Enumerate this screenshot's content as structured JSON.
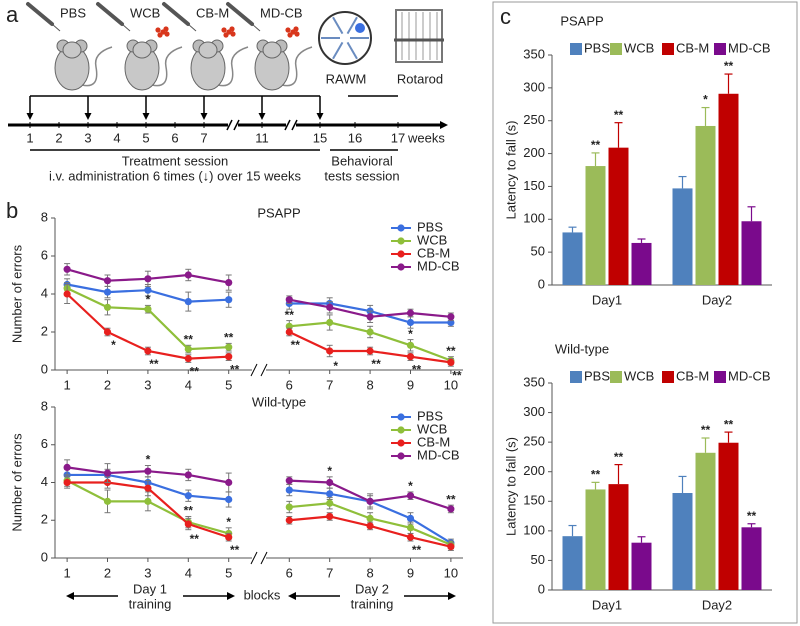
{
  "panel_labels": [
    "a",
    "b",
    "c"
  ],
  "panel_a": {
    "treatments": [
      "PBS",
      "WCB",
      "CB-M",
      "MD-CB"
    ],
    "tests": [
      "RAWM",
      "Rotarod"
    ],
    "timeline_weeks": [
      1,
      2,
      3,
      4,
      5,
      6,
      7,
      11,
      15,
      16,
      17
    ],
    "timeline_unit": "weeks",
    "injection_weeks": [
      1,
      3,
      5,
      7,
      11,
      15
    ],
    "treatment_session": [
      "Treatment session",
      "i.v. administration 6 times (↓) over 15 weeks"
    ],
    "behavioral_session": [
      "Behavioral",
      "tests session"
    ]
  },
  "panel_b_footer": {
    "day1": [
      "Day 1",
      "training"
    ],
    "blocks": "blocks",
    "day2": [
      "Day 2",
      "training"
    ]
  },
  "chart_data": [
    {
      "type": "line",
      "title": "PSAPP",
      "y_label": "Number of errors",
      "x": [
        1,
        2,
        3,
        4,
        5,
        6,
        7,
        8,
        9,
        10
      ],
      "xlim": [
        0.7,
        10.3
      ],
      "xticks": [
        1,
        2,
        3,
        4,
        5,
        6,
        7,
        8,
        9,
        10
      ],
      "axis_break_after": 5,
      "ylim": [
        0,
        8
      ],
      "yticks": [
        0,
        2,
        4,
        6,
        8
      ],
      "legend": "upper right",
      "series": [
        {
          "name": "PBS",
          "color": "#3a6fe0",
          "values": [
            4.5,
            4.1,
            4.2,
            3.6,
            3.7,
            3.5,
            3.5,
            3.1,
            2.5,
            2.5
          ],
          "errors": [
            0.3,
            0.3,
            0.3,
            0.5,
            0.4,
            0.3,
            0.3,
            0.3,
            0.3,
            0.2
          ],
          "significance": [
            null,
            null,
            null,
            null,
            null,
            null,
            null,
            null,
            null,
            null
          ]
        },
        {
          "name": "WCB",
          "color": "#8fbf3a",
          "values": [
            4.3,
            3.3,
            3.2,
            1.1,
            1.2,
            2.3,
            2.5,
            2.0,
            1.3,
            0.5
          ],
          "errors": [
            0.3,
            0.4,
            0.2,
            0.2,
            0.2,
            0.3,
            0.4,
            0.3,
            0.3,
            0.2
          ],
          "significance": [
            null,
            null,
            "*",
            "**",
            "**",
            "**",
            null,
            "*",
            "*",
            "**"
          ]
        },
        {
          "name": "CB-M",
          "color": "#e8201e",
          "values": [
            4.0,
            2.0,
            1.0,
            0.6,
            0.7,
            2.0,
            1.0,
            1.0,
            0.7,
            0.4
          ],
          "errors": [
            0.5,
            0.2,
            0.2,
            0.2,
            0.2,
            0.2,
            0.3,
            0.2,
            0.2,
            0.2
          ],
          "significance": [
            null,
            "*",
            "**",
            "**",
            "**",
            "**",
            "*",
            "**",
            "**",
            "**"
          ]
        },
        {
          "name": "MD-CB",
          "color": "#8a1a8a",
          "values": [
            5.3,
            4.7,
            4.8,
            5.0,
            4.6,
            3.7,
            3.3,
            2.8,
            3.0,
            2.8
          ],
          "errors": [
            0.3,
            0.3,
            0.4,
            0.3,
            0.4,
            0.2,
            0.3,
            0.3,
            0.2,
            0.2
          ],
          "significance": [
            null,
            null,
            null,
            null,
            null,
            null,
            null,
            null,
            null,
            null
          ]
        }
      ]
    },
    {
      "type": "line",
      "title": "Wild-type",
      "y_label": "Number of errors",
      "x": [
        1,
        2,
        3,
        4,
        5,
        6,
        7,
        8,
        9,
        10
      ],
      "xlim": [
        0.7,
        10.3
      ],
      "xticks": [
        1,
        2,
        3,
        4,
        5,
        6,
        7,
        8,
        9,
        10
      ],
      "axis_break_after": 5,
      "ylim": [
        0,
        8
      ],
      "yticks": [
        0,
        2,
        4,
        6,
        8
      ],
      "legend": "upper right",
      "series": [
        {
          "name": "PBS",
          "color": "#3a6fe0",
          "values": [
            4.4,
            4.4,
            4.0,
            3.3,
            3.1,
            3.6,
            3.4,
            3.0,
            2.1,
            0.8
          ],
          "errors": [
            0.3,
            0.3,
            0.3,
            0.3,
            0.4,
            0.3,
            0.3,
            0.4,
            0.3,
            0.2
          ],
          "significance": [
            null,
            null,
            null,
            null,
            null,
            null,
            null,
            null,
            null,
            null
          ]
        },
        {
          "name": "WCB",
          "color": "#8fbf3a",
          "values": [
            4.1,
            3.0,
            3.0,
            1.9,
            1.3,
            2.7,
            2.9,
            2.1,
            1.6,
            0.7
          ],
          "errors": [
            0.3,
            0.6,
            0.5,
            0.3,
            0.3,
            0.3,
            0.3,
            0.3,
            0.3,
            0.2
          ],
          "significance": [
            null,
            null,
            null,
            "**",
            "*",
            null,
            null,
            null,
            null,
            null
          ]
        },
        {
          "name": "CB-M",
          "color": "#e8201e",
          "values": [
            4.0,
            4.0,
            3.7,
            1.8,
            1.1,
            2.0,
            2.2,
            1.7,
            1.1,
            0.6
          ],
          "errors": [
            0.3,
            0.3,
            0.4,
            0.3,
            0.2,
            0.2,
            0.2,
            0.2,
            0.2,
            0.2
          ],
          "significance": [
            null,
            null,
            null,
            "**",
            "**",
            null,
            null,
            null,
            "**",
            null
          ]
        },
        {
          "name": "MD-CB",
          "color": "#8a1a8a",
          "values": [
            4.8,
            4.5,
            4.6,
            4.4,
            4.0,
            4.1,
            4.0,
            3.0,
            3.3,
            2.6
          ],
          "errors": [
            0.4,
            0.5,
            0.3,
            0.3,
            0.5,
            0.2,
            0.3,
            0.3,
            0.2,
            0.2
          ],
          "significance": [
            null,
            null,
            "*",
            null,
            null,
            null,
            "*",
            null,
            "*",
            "**"
          ]
        }
      ]
    },
    {
      "type": "bar",
      "title": "PSAPP",
      "y_label": "Latency to fall (s)",
      "categories": [
        "Day1",
        "Day2"
      ],
      "ylim": [
        0,
        350
      ],
      "yticks": [
        0,
        50,
        100,
        150,
        200,
        250,
        300,
        350
      ],
      "legend": "top",
      "series": [
        {
          "name": "PBS",
          "color": "#4f81bd",
          "values": [
            80,
            147
          ],
          "errors": [
            8,
            18
          ],
          "significance": [
            null,
            null
          ]
        },
        {
          "name": "WCB",
          "color": "#9bbb59",
          "values": [
            181,
            242
          ],
          "errors": [
            20,
            28
          ],
          "significance": [
            "**",
            "*"
          ]
        },
        {
          "name": "CB-M",
          "color": "#c00000",
          "values": [
            209,
            291
          ],
          "errors": [
            38,
            30
          ],
          "significance": [
            "**",
            "**"
          ]
        },
        {
          "name": "MD-CB",
          "color": "#7a0a8c",
          "values": [
            64,
            97
          ],
          "errors": [
            6,
            22
          ],
          "significance": [
            null,
            null
          ]
        }
      ]
    },
    {
      "type": "bar",
      "title": "Wild-type",
      "y_label": "Latency to fall (s)",
      "categories": [
        "Day1",
        "Day2"
      ],
      "ylim": [
        0,
        350
      ],
      "yticks": [
        0,
        50,
        100,
        150,
        200,
        250,
        300,
        350
      ],
      "legend": "top",
      "series": [
        {
          "name": "PBS",
          "color": "#4f81bd",
          "values": [
            91,
            164
          ],
          "errors": [
            18,
            28
          ],
          "significance": [
            null,
            null
          ]
        },
        {
          "name": "WCB",
          "color": "#9bbb59",
          "values": [
            170,
            232
          ],
          "errors": [
            12,
            25
          ],
          "significance": [
            "**",
            "**"
          ]
        },
        {
          "name": "CB-M",
          "color": "#c00000",
          "values": [
            179,
            249
          ],
          "errors": [
            33,
            18
          ],
          "significance": [
            "**",
            "**"
          ]
        },
        {
          "name": "MD-CB",
          "color": "#7a0a8c",
          "values": [
            80,
            106
          ],
          "errors": [
            10,
            6
          ],
          "significance": [
            null,
            "**"
          ]
        }
      ]
    }
  ]
}
